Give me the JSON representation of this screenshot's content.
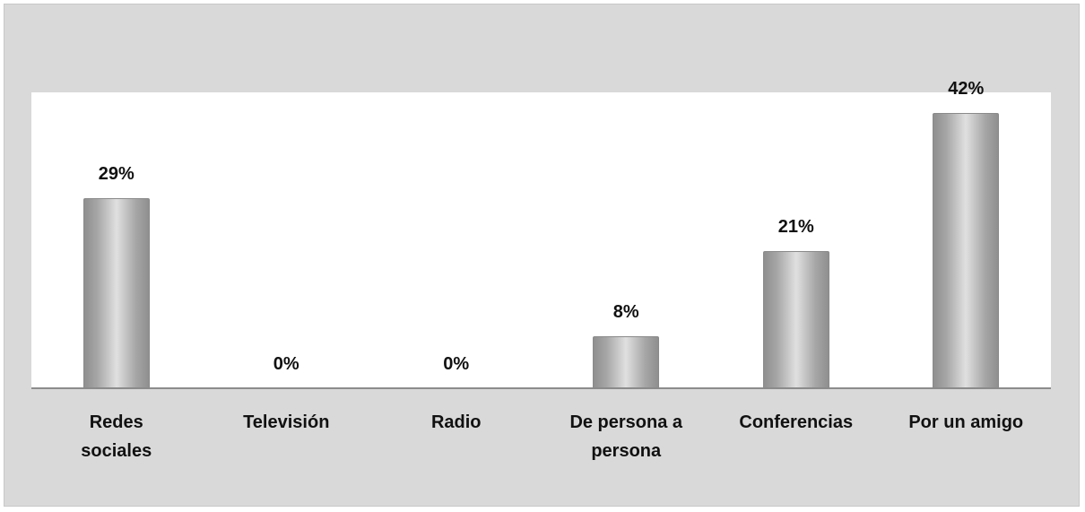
{
  "chart_data": {
    "type": "bar",
    "categories": [
      [
        "Redes",
        "sociales"
      ],
      [
        "Televisión"
      ],
      [
        "Radio"
      ],
      [
        "De persona a",
        "persona"
      ],
      [
        "Conferencias"
      ],
      [
        "Por un amigo"
      ]
    ],
    "values": [
      29,
      0,
      0,
      8,
      21,
      42
    ],
    "value_labels": [
      "29%",
      "0%",
      "0%",
      "8%",
      "21%",
      "42%"
    ],
    "color": "#a6a6a6"
  }
}
